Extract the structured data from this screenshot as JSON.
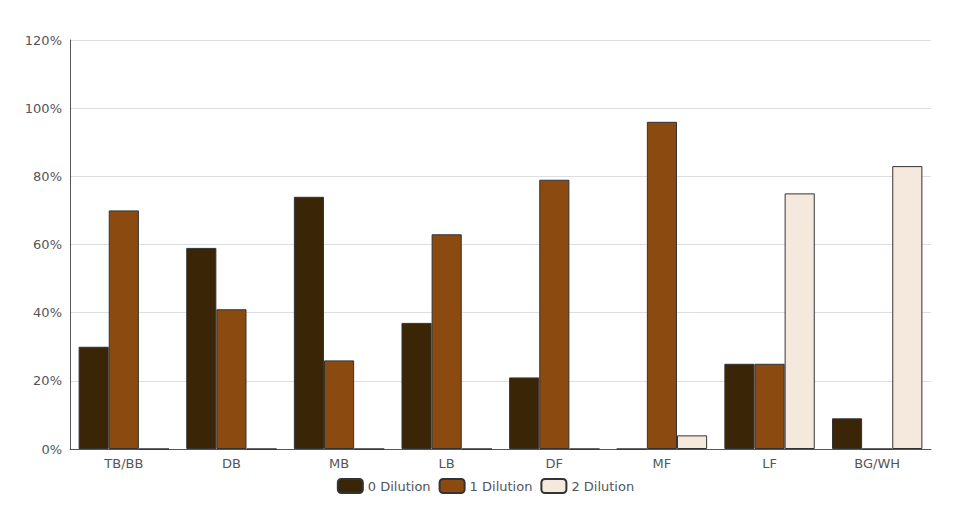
{
  "chart_data": {
    "type": "bar",
    "categories": [
      "TB/BB",
      "DB",
      "MB",
      "LB",
      "DF",
      "MF",
      "LF",
      "BG/WH"
    ],
    "series": [
      {
        "name": "0 Dilution",
        "color": "#3B2507",
        "values": [
          0.3,
          0.59,
          0.74,
          0.37,
          0.21,
          0.0,
          0.25,
          0.09
        ]
      },
      {
        "name": "1 Dilution",
        "color": "#8B4A10",
        "values": [
          0.7,
          0.41,
          0.26,
          0.63,
          0.79,
          0.96,
          0.25,
          0.0
        ]
      },
      {
        "name": "2 Dilution",
        "color": "#F5E8DC",
        "values": [
          0.0,
          0.0,
          0.0,
          0.0,
          0.0,
          0.04,
          0.75,
          0.83
        ]
      }
    ],
    "ylim": [
      0,
      1.2
    ],
    "yticks": [
      {
        "value": 0,
        "label": "0%"
      },
      {
        "value": 0.2,
        "label": "20%"
      },
      {
        "value": 0.4,
        "label": "40%"
      },
      {
        "value": 0.6,
        "label": "60%"
      },
      {
        "value": 0.8,
        "label": "80%"
      },
      {
        "value": 1.0,
        "label": "100%"
      },
      {
        "value": 1.2,
        "label": "120%"
      }
    ],
    "grid": true,
    "legend": "bottom"
  }
}
